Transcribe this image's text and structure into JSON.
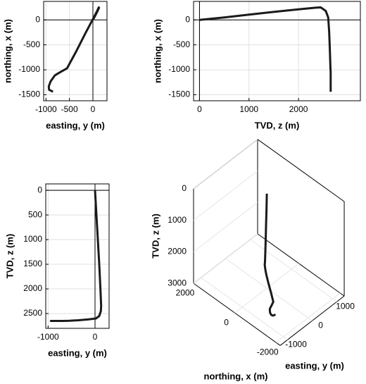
{
  "chart_data": [
    {
      "type": "line",
      "xlabel": "easting, y (m)",
      "ylabel": "northing, x (m)",
      "x": [
        0,
        30,
        60,
        90,
        115,
        130,
        125,
        90,
        20,
        -150,
        -350,
        -550,
        -700,
        -810,
        -900,
        -940,
        -935,
        -850
      ],
      "y": [
        0,
        50,
        105,
        160,
        210,
        245,
        250,
        180,
        50,
        -250,
        -620,
        -970,
        -1050,
        -1110,
        -1230,
        -1330,
        -1400,
        -1440
      ],
      "xlim": [
        -1050,
        300
      ],
      "ylim": [
        -1620,
        370
      ],
      "xticks": [
        -1000,
        -500,
        0
      ],
      "yticks": [
        -1500,
        -1000,
        -500,
        0
      ],
      "grid": true,
      "origin_lines": true,
      "color": "#1a1a1a"
    },
    {
      "type": "line",
      "xlabel": "TVD, z (m)",
      "ylabel": "northing, x (m)",
      "x": [
        0,
        500,
        1000,
        1500,
        2000,
        2350,
        2450,
        2550,
        2600,
        2620,
        2635,
        2645,
        2650,
        2650,
        2650,
        2650,
        2650,
        2650
      ],
      "y": [
        0,
        50,
        105,
        160,
        210,
        245,
        250,
        180,
        50,
        -250,
        -620,
        -970,
        -1050,
        -1110,
        -1230,
        -1330,
        -1400,
        -1440
      ],
      "xlim": [
        -120,
        3250
      ],
      "ylim": [
        -1620,
        370
      ],
      "xticks": [
        0,
        1000,
        2000
      ],
      "yticks": [
        -1500,
        -1000,
        -500,
        0
      ],
      "grid": true,
      "origin_lines": true,
      "color": "#1a1a1a"
    },
    {
      "type": "line",
      "xlabel": "easting, y (m)",
      "ylabel": "TVD, z (m)",
      "x": [
        0,
        30,
        60,
        90,
        115,
        130,
        125,
        90,
        20,
        -150,
        -350,
        -550,
        -700,
        -810,
        -900,
        -940,
        -935,
        -850
      ],
      "y": [
        0,
        500,
        1000,
        1500,
        2000,
        2350,
        2450,
        2550,
        2600,
        2620,
        2635,
        2645,
        2650,
        2650,
        2650,
        2650,
        2650,
        2650
      ],
      "xlim": [
        -1050,
        300
      ],
      "ylim": [
        -130,
        2800
      ],
      "y_reversed": true,
      "xticks": [
        -1000,
        0
      ],
      "yticks": [
        0,
        500,
        1000,
        1500,
        2000,
        2500
      ],
      "grid": true,
      "origin_lines": true,
      "color": "#1a1a1a"
    },
    {
      "type": "line3d",
      "xlabel": "northing, x (m)",
      "ylabel": "easting, y (m)",
      "zlabel": "TVD, z (m)",
      "x": [
        0,
        50,
        105,
        160,
        210,
        245,
        250,
        180,
        50,
        -250,
        -620,
        -970,
        -1050,
        -1110,
        -1230,
        -1330,
        -1400,
        -1440
      ],
      "y": [
        0,
        30,
        60,
        90,
        115,
        130,
        125,
        90,
        20,
        -150,
        -350,
        -550,
        -700,
        -810,
        -900,
        -940,
        -935,
        -850
      ],
      "z": [
        0,
        500,
        1000,
        1500,
        2000,
        2350,
        2450,
        2550,
        2600,
        2620,
        2635,
        2645,
        2650,
        2650,
        2650,
        2650,
        2650,
        2650
      ],
      "xlim": [
        -2200,
        2000
      ],
      "ylim": [
        -1300,
        1300
      ],
      "zlim": [
        0,
        3000
      ],
      "z_reversed": true,
      "xticks": [
        -2000,
        0,
        2000
      ],
      "yticks": [
        -1000,
        0,
        1000
      ],
      "zticks": [
        0,
        1000,
        2000,
        3000
      ],
      "color": "#1a1a1a"
    }
  ]
}
